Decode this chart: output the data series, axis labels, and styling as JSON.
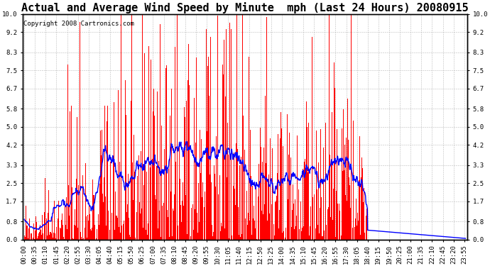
{
  "title": "Actual and Average Wind Speed by Minute  mph (Last 24 Hours) 20080915",
  "copyright": "Copyright 2008 Cartronics.com",
  "yticks": [
    0.0,
    0.8,
    1.7,
    2.5,
    3.3,
    4.2,
    5.0,
    5.8,
    6.7,
    7.5,
    8.3,
    9.2,
    10.0
  ],
  "ymax": 10.0,
  "ymin": 0.0,
  "bar_color": "#FF0000",
  "line_color": "#0000FF",
  "bg_color": "#FFFFFF",
  "grid_color": "#BBBBBB",
  "title_fontsize": 11,
  "copyright_fontsize": 6.5,
  "tick_fontsize": 6.5,
  "tick_interval_minutes": 35,
  "total_minutes": 1440,
  "cutoff_minute": 1120
}
